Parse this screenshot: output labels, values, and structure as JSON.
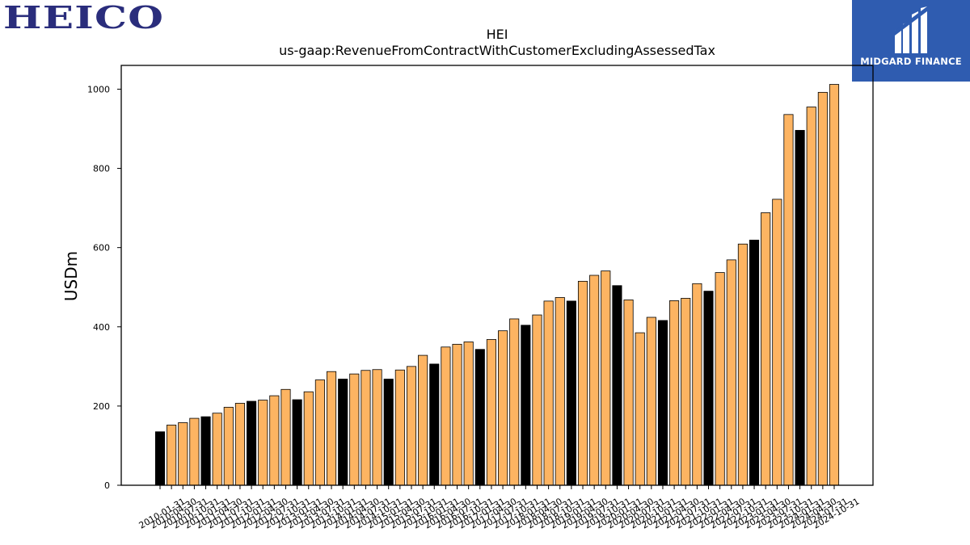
{
  "logos": {
    "left_text": "HEICO",
    "right_text": "MIDGARD FINANCE"
  },
  "chart_data": {
    "type": "bar",
    "title": "HEI",
    "subtitle": "us-gaap:RevenueFromContractWithCustomerExcludingAssessedTax",
    "xlabel": "",
    "ylabel": "USDm",
    "ylim": [
      0,
      1060
    ],
    "yticks": [
      0,
      200,
      400,
      600,
      800,
      1000
    ],
    "grid": false,
    "colors": {
      "quarter": "#fdb462",
      "annual": "#000000",
      "edge": "#000000"
    },
    "categories": [
      "2010-01-31",
      "2010-04-30",
      "2010-07-31",
      "2010-10-31",
      "2011-01-31",
      "2011-04-30",
      "2011-07-31",
      "2011-10-31",
      "2012-01-31",
      "2012-04-30",
      "2012-07-31",
      "2012-10-31",
      "2013-01-31",
      "2013-04-30",
      "2013-07-31",
      "2013-10-31",
      "2014-01-31",
      "2014-04-30",
      "2014-07-31",
      "2014-10-31",
      "2015-01-31",
      "2015-04-30",
      "2015-07-31",
      "2015-10-31",
      "2016-01-31",
      "2016-04-30",
      "2016-07-31",
      "2016-10-31",
      "2017-01-31",
      "2017-04-30",
      "2017-07-31",
      "2017-10-31",
      "2018-01-31",
      "2018-04-30",
      "2018-07-31",
      "2018-10-31",
      "2019-01-31",
      "2019-04-30",
      "2019-07-31",
      "2019-10-31",
      "2020-01-31",
      "2020-04-30",
      "2020-07-31",
      "2020-10-31",
      "2021-01-31",
      "2021-04-30",
      "2021-07-31",
      "2021-10-31",
      "2022-01-31",
      "2022-04-30",
      "2022-07-31",
      "2022-10-31",
      "2023-01-31",
      "2023-04-30",
      "2023-07-31",
      "2023-10-31",
      "2024-01-31",
      "2024-04-30",
      "2024-07-31",
      "2024-10-31"
    ],
    "values": [
      135,
      152,
      158,
      169,
      173,
      182,
      197,
      207,
      212,
      215,
      226,
      242,
      216,
      236,
      266,
      287,
      268,
      281,
      290,
      292,
      268,
      291,
      300,
      328,
      306,
      349,
      356,
      362,
      343,
      368,
      390,
      420,
      404,
      430,
      465,
      474,
      465,
      515,
      530,
      541,
      504,
      468,
      385,
      424,
      416,
      466,
      472,
      509,
      490,
      537,
      569,
      609,
      619,
      688,
      722,
      936,
      896,
      955,
      992,
      1012
    ],
    "annual_flags": [
      1,
      0,
      0,
      0,
      1,
      0,
      0,
      0,
      1,
      0,
      0,
      0,
      1,
      0,
      0,
      0,
      1,
      0,
      0,
      0,
      1,
      0,
      0,
      0,
      1,
      0,
      0,
      0,
      1,
      0,
      0,
      0,
      1,
      0,
      0,
      0,
      1,
      0,
      0,
      0,
      1,
      0,
      0,
      0,
      1,
      0,
      0,
      0,
      1,
      0,
      0,
      0,
      1,
      0,
      0,
      0,
      1,
      0,
      0,
      0
    ]
  }
}
